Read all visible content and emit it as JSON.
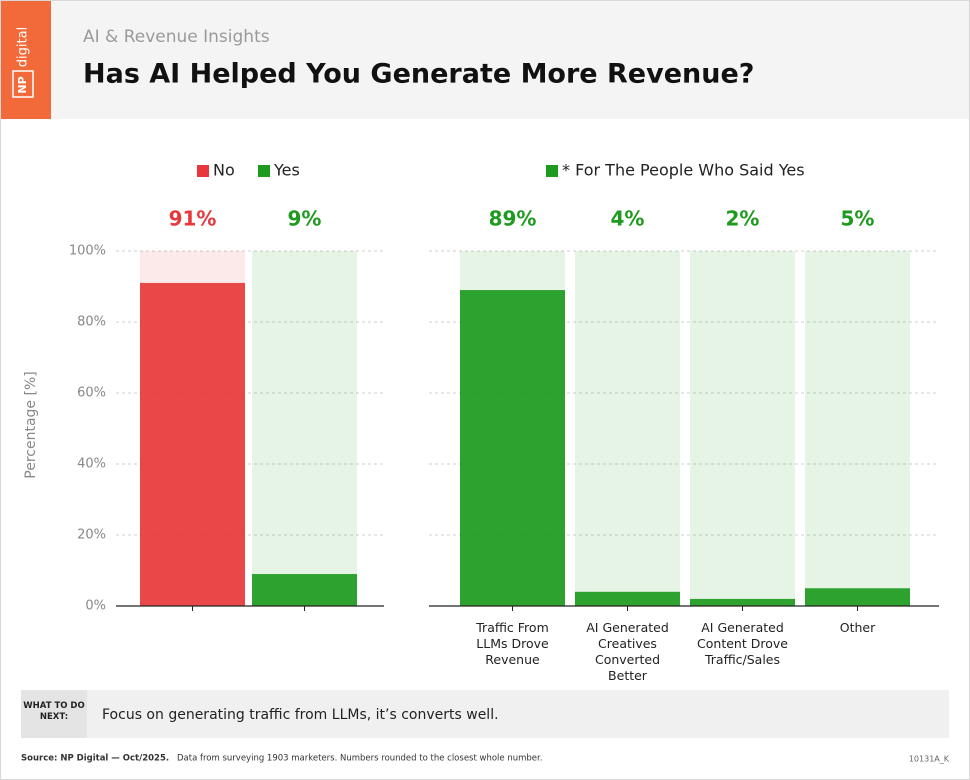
{
  "header": {
    "logo_mark": "NP",
    "logo_text": "digital",
    "subtitle": "AI & Revenue Insights",
    "title": "Has AI Helped You Generate More Revenue?"
  },
  "chart_data": [
    {
      "type": "bar",
      "ylabel": "Percentage [%]",
      "categories": [
        "No",
        "Yes"
      ],
      "values": [
        91,
        9
      ],
      "value_labels": [
        "91%",
        "9%"
      ],
      "colors": [
        "#e8383b",
        "#1e9a1e"
      ],
      "ylim": [
        0,
        100
      ],
      "yticks": [
        {
          "value": 0,
          "label": "0%"
        },
        {
          "value": 20,
          "label": "20%"
        },
        {
          "value": 40,
          "label": "40%"
        },
        {
          "value": 60,
          "label": "60%"
        },
        {
          "value": 80,
          "label": "80%"
        },
        {
          "value": 100,
          "label": "100%"
        }
      ],
      "grid": true,
      "show_tick_labels": true
    },
    {
      "type": "bar",
      "legend": "* For The People Who Said Yes",
      "categories": [
        "Traffic From LLMs Drove Revenue",
        "AI Generated Creatives Converted Better",
        "AI Generated Content Drove Traffic/Sales",
        "Other"
      ],
      "values": [
        89,
        4,
        2,
        5
      ],
      "value_labels": [
        "89%",
        "4%",
        "2%",
        "5%"
      ],
      "color": "#1e9a1e",
      "ylim": [
        0,
        100
      ],
      "yticks": [
        0,
        20,
        40,
        60,
        80,
        100
      ],
      "grid": true,
      "show_tick_labels": false
    }
  ],
  "callout": {
    "label": "WHAT TO DO NEXT:",
    "text": "Focus on generating traffic from LLMs, it’s converts well."
  },
  "footer": {
    "source": "Source: NP Digital — Oct/2025.",
    "note": "Data from surveying 1903 marketers. Numbers rounded to the closest whole number.",
    "code": "10131A_K"
  }
}
